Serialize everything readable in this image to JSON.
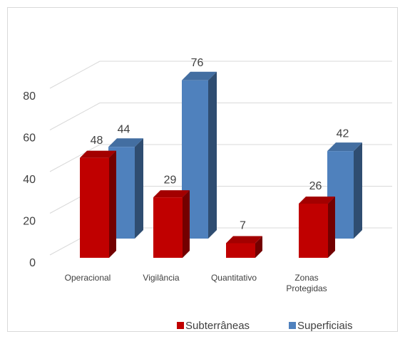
{
  "chart_data": {
    "type": "bar3d",
    "categories": [
      "Operacional",
      "Vigilância",
      "Quantitativo",
      "Zonas Protegidas"
    ],
    "series": [
      {
        "name": "Subterrâneas",
        "color": "#c00000",
        "values": [
          48,
          29,
          7,
          26
        ]
      },
      {
        "name": "Superficiais",
        "color": "#4f81bd",
        "values": [
          44,
          76,
          null,
          42
        ]
      }
    ],
    "ylim": [
      0,
      80
    ],
    "yticks": [
      0,
      20,
      40,
      60,
      80
    ],
    "grid": true,
    "legend": "bottom"
  }
}
